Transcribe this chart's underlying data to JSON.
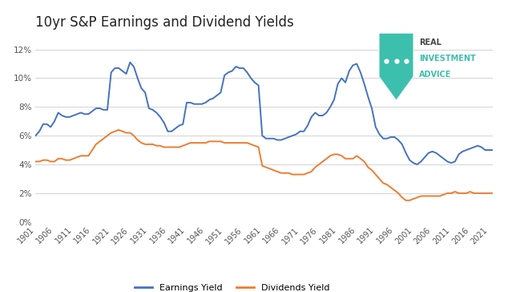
{
  "title": "10yr S&P Earnings and Dividend Yields",
  "title_fontsize": 12,
  "background_color": "#ffffff",
  "grid_color": "#cccccc",
  "ylim": [
    0,
    0.13
  ],
  "yticks": [
    0,
    0.02,
    0.04,
    0.06,
    0.08,
    0.1,
    0.12
  ],
  "ytick_labels": [
    "0%",
    "2%",
    "4%",
    "6%",
    "8%",
    "10%",
    "12%"
  ],
  "xticks": [
    1901,
    1906,
    1911,
    1916,
    1921,
    1926,
    1931,
    1936,
    1941,
    1946,
    1951,
    1956,
    1961,
    1966,
    1971,
    1976,
    1981,
    1986,
    1991,
    1996,
    2001,
    2006,
    2011,
    2016,
    2021
  ],
  "earnings_color": "#4472C4",
  "dividends_color": "#ED7D31",
  "legend_labels": [
    "Earnings Yield",
    "Dividends Yield"
  ],
  "logo_bg": "#3DBFAD",
  "logo_text_color": "#3DBFAD",
  "logo_label_color": "#444444",
  "earnings_yield": {
    "years": [
      1901,
      1902,
      1903,
      1904,
      1905,
      1906,
      1907,
      1908,
      1909,
      1910,
      1911,
      1912,
      1913,
      1914,
      1915,
      1916,
      1917,
      1918,
      1919,
      1920,
      1921,
      1922,
      1923,
      1924,
      1925,
      1926,
      1927,
      1928,
      1929,
      1930,
      1931,
      1932,
      1933,
      1934,
      1935,
      1936,
      1937,
      1938,
      1939,
      1940,
      1941,
      1942,
      1943,
      1944,
      1945,
      1946,
      1947,
      1948,
      1949,
      1950,
      1951,
      1952,
      1953,
      1954,
      1955,
      1956,
      1957,
      1958,
      1959,
      1960,
      1961,
      1962,
      1963,
      1964,
      1965,
      1966,
      1967,
      1968,
      1969,
      1970,
      1971,
      1972,
      1973,
      1974,
      1975,
      1976,
      1977,
      1978,
      1979,
      1980,
      1981,
      1982,
      1983,
      1984,
      1985,
      1986,
      1987,
      1988,
      1989,
      1990,
      1991,
      1992,
      1993,
      1994,
      1995,
      1996,
      1997,
      1998,
      1999,
      2000,
      2001,
      2002,
      2003,
      2004,
      2005,
      2006,
      2007,
      2008,
      2009,
      2010,
      2011,
      2012,
      2013,
      2014,
      2015,
      2016,
      2017,
      2018,
      2019,
      2020,
      2021,
      2022
    ],
    "values": [
      0.06,
      0.063,
      0.068,
      0.068,
      0.066,
      0.07,
      0.076,
      0.074,
      0.073,
      0.073,
      0.074,
      0.075,
      0.076,
      0.075,
      0.075,
      0.077,
      0.079,
      0.079,
      0.078,
      0.078,
      0.104,
      0.107,
      0.107,
      0.105,
      0.103,
      0.111,
      0.108,
      0.1,
      0.093,
      0.09,
      0.079,
      0.078,
      0.076,
      0.073,
      0.069,
      0.063,
      0.063,
      0.065,
      0.067,
      0.068,
      0.083,
      0.083,
      0.082,
      0.082,
      0.082,
      0.083,
      0.085,
      0.086,
      0.088,
      0.09,
      0.102,
      0.104,
      0.105,
      0.108,
      0.107,
      0.107,
      0.104,
      0.1,
      0.097,
      0.095,
      0.06,
      0.058,
      0.058,
      0.058,
      0.057,
      0.057,
      0.058,
      0.059,
      0.06,
      0.061,
      0.063,
      0.063,
      0.067,
      0.073,
      0.076,
      0.074,
      0.074,
      0.076,
      0.08,
      0.085,
      0.096,
      0.1,
      0.097,
      0.105,
      0.109,
      0.11,
      0.104,
      0.096,
      0.087,
      0.079,
      0.066,
      0.061,
      0.058,
      0.058,
      0.059,
      0.059,
      0.057,
      0.054,
      0.048,
      0.043,
      0.041,
      0.04,
      0.042,
      0.045,
      0.048,
      0.049,
      0.048,
      0.046,
      0.044,
      0.042,
      0.041,
      0.042,
      0.047,
      0.049,
      0.05,
      0.051,
      0.052,
      0.053,
      0.052,
      0.05,
      0.05,
      0.05
    ]
  },
  "dividends_yield": {
    "years": [
      1901,
      1902,
      1903,
      1904,
      1905,
      1906,
      1907,
      1908,
      1909,
      1910,
      1911,
      1912,
      1913,
      1914,
      1915,
      1916,
      1917,
      1918,
      1919,
      1920,
      1921,
      1922,
      1923,
      1924,
      1925,
      1926,
      1927,
      1928,
      1929,
      1930,
      1931,
      1932,
      1933,
      1934,
      1935,
      1936,
      1937,
      1938,
      1939,
      1940,
      1941,
      1942,
      1943,
      1944,
      1945,
      1946,
      1947,
      1948,
      1949,
      1950,
      1951,
      1952,
      1953,
      1954,
      1955,
      1956,
      1957,
      1958,
      1959,
      1960,
      1961,
      1962,
      1963,
      1964,
      1965,
      1966,
      1967,
      1968,
      1969,
      1970,
      1971,
      1972,
      1973,
      1974,
      1975,
      1976,
      1977,
      1978,
      1979,
      1980,
      1981,
      1982,
      1983,
      1984,
      1985,
      1986,
      1987,
      1988,
      1989,
      1990,
      1991,
      1992,
      1993,
      1994,
      1995,
      1996,
      1997,
      1998,
      1999,
      2000,
      2001,
      2002,
      2003,
      2004,
      2005,
      2006,
      2007,
      2008,
      2009,
      2010,
      2011,
      2012,
      2013,
      2014,
      2015,
      2016,
      2017,
      2018,
      2019,
      2020,
      2021,
      2022
    ],
    "values": [
      0.042,
      0.042,
      0.043,
      0.043,
      0.042,
      0.042,
      0.044,
      0.044,
      0.043,
      0.043,
      0.044,
      0.045,
      0.046,
      0.046,
      0.046,
      0.05,
      0.054,
      0.056,
      0.058,
      0.06,
      0.062,
      0.063,
      0.064,
      0.063,
      0.062,
      0.062,
      0.06,
      0.057,
      0.055,
      0.054,
      0.054,
      0.054,
      0.053,
      0.053,
      0.052,
      0.052,
      0.052,
      0.052,
      0.052,
      0.053,
      0.054,
      0.055,
      0.055,
      0.055,
      0.055,
      0.055,
      0.056,
      0.056,
      0.056,
      0.056,
      0.055,
      0.055,
      0.055,
      0.055,
      0.055,
      0.055,
      0.055,
      0.054,
      0.053,
      0.052,
      0.039,
      0.038,
      0.037,
      0.036,
      0.035,
      0.034,
      0.034,
      0.034,
      0.033,
      0.033,
      0.033,
      0.033,
      0.034,
      0.035,
      0.038,
      0.04,
      0.042,
      0.044,
      0.046,
      0.047,
      0.047,
      0.046,
      0.044,
      0.044,
      0.044,
      0.046,
      0.044,
      0.042,
      0.038,
      0.036,
      0.033,
      0.03,
      0.027,
      0.026,
      0.024,
      0.022,
      0.02,
      0.017,
      0.015,
      0.015,
      0.016,
      0.017,
      0.018,
      0.018,
      0.018,
      0.018,
      0.018,
      0.018,
      0.019,
      0.02,
      0.02,
      0.021,
      0.02,
      0.02,
      0.02,
      0.021,
      0.02,
      0.02,
      0.02,
      0.02,
      0.02,
      0.02
    ]
  }
}
